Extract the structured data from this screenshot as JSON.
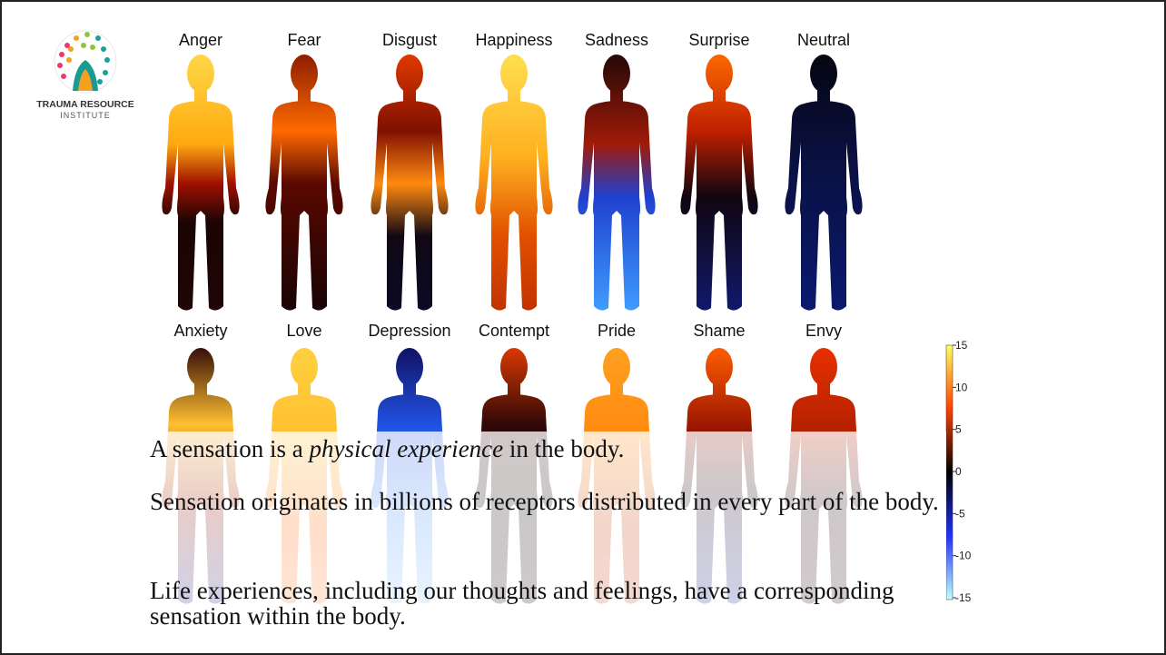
{
  "logo": {
    "line1": "TRAUMA RESOURCE",
    "line2": "INSTITUTE"
  },
  "figures": {
    "row1": [
      "Anger",
      "Fear",
      "Disgust",
      "Happiness",
      "Sadness",
      "Surprise",
      "Neutral"
    ],
    "row2": [
      "Anxiety",
      "Love",
      "Depression",
      "Contempt",
      "Pride",
      "Shame",
      "Envy"
    ]
  },
  "colorbar": {
    "ticks": [
      "15",
      "10",
      "5",
      "0",
      "-5",
      "-10",
      "-15"
    ]
  },
  "text": {
    "p1": {
      "before": "A sensation is a ",
      "em": "physical experience",
      "after": " in the body."
    },
    "p2": "Sensation originates in billions of receptors distributed in every part of the body.",
    "p3": "Life experiences, including our thoughts and feelings, have a corresponding sensation within the body."
  }
}
